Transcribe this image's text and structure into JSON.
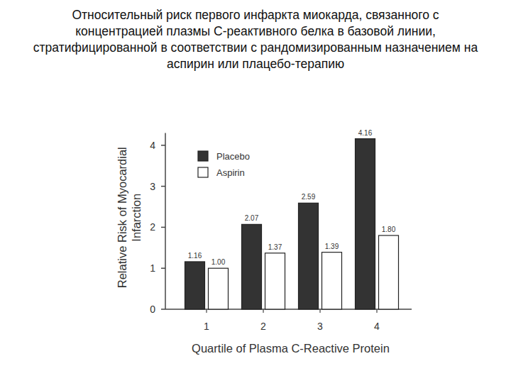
{
  "chart_data": {
    "type": "bar",
    "title": "Относительный риск первого инфаркта миокарда, связанного с концентрацией плазмы C-реактивного белка в базовой линии, стратифицированной в соответствии с рандомизированным назначением на аспирин или плацебо-терапию",
    "x_label": "Quartile of Plasma C-Reactive Protein",
    "y_label": "Relative Risk of Myocardial Infarction",
    "categories": [
      "1",
      "2",
      "3",
      "4"
    ],
    "series": [
      {
        "name": "Placebo",
        "color": "#333333",
        "values": [
          1.16,
          2.07,
          2.59,
          4.16
        ]
      },
      {
        "name": "Aspirin",
        "color": "#ffffff",
        "values": [
          1.0,
          1.37,
          1.39,
          1.8
        ],
        "value_labels": [
          "1.00",
          "1.37",
          "1.39",
          "1.80"
        ]
      }
    ],
    "ylim": [
      0,
      4.3
    ],
    "yticks": [
      0,
      1,
      2,
      3,
      4
    ],
    "grid": false,
    "legend": "upper left",
    "data_labels": true
  }
}
